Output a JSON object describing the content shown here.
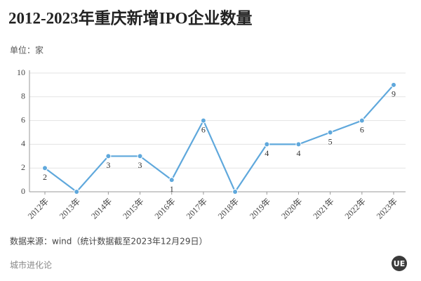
{
  "chart_data": {
    "type": "line",
    "title": "2012-2023年重庆新增IPO企业数量",
    "y_label": "单位：家",
    "source": "数据来源：wind（统计数据截至2023年12月29日）",
    "brand": "城市进化论",
    "logo": "UE",
    "categories": [
      "2012年",
      "2013年",
      "2014年",
      "2015年",
      "2016年",
      "2017年",
      "2018年",
      "2019年",
      "2020年",
      "2021年",
      "2022年",
      "2023年"
    ],
    "series": [
      {
        "name": "新增IPO企业数量",
        "color": "#5fa8dc",
        "values": [
          2,
          0,
          3,
          3,
          1,
          6,
          0,
          4,
          4,
          5,
          6,
          9
        ]
      }
    ],
    "ylim": [
      0,
      10
    ],
    "yticks": [
      0,
      2,
      4,
      6,
      8,
      10
    ],
    "grid": true
  }
}
